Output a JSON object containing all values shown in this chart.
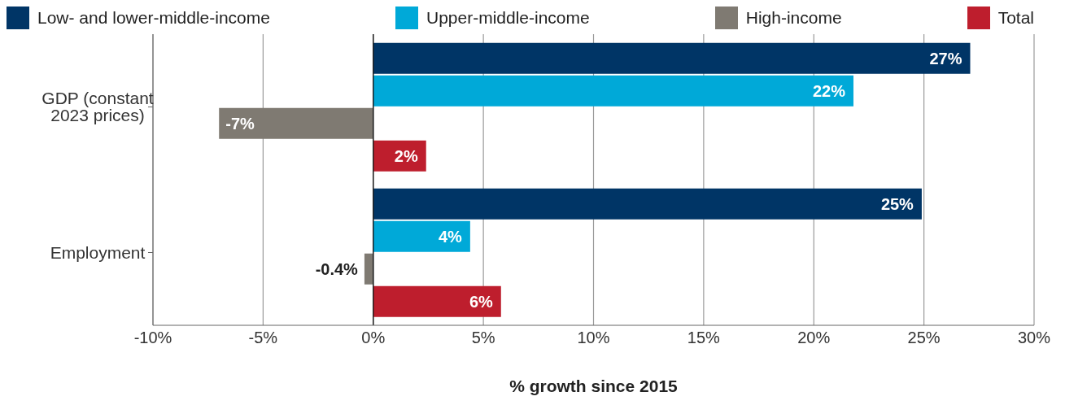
{
  "chart_data": {
    "type": "bar",
    "orientation": "horizontal",
    "xlabel": "% growth since 2015",
    "categories": [
      "GDP (constant 2023 prices)",
      "Employment"
    ],
    "series": [
      {
        "name": "Low- and lower-middle-income",
        "color": "#003566",
        "values": [
          27.1,
          24.9
        ],
        "value_labels": [
          "27%",
          "25%"
        ]
      },
      {
        "name": "Upper-middle-income",
        "color": "#00a9d8",
        "values": [
          21.8,
          4.4
        ],
        "value_labels": [
          "22%",
          "4%"
        ]
      },
      {
        "name": "High-income",
        "color": "#7f7a72",
        "values": [
          -7.0,
          -0.4
        ],
        "value_labels": [
          "-7%",
          "-0.4%"
        ]
      },
      {
        "name": "Total",
        "color": "#be1e2d",
        "values": [
          2.4,
          5.8
        ],
        "value_labels": [
          "2%",
          "6%"
        ]
      }
    ],
    "xlim": [
      -10,
      30
    ],
    "xticks": [
      {
        "value": -10,
        "label": "-10%"
      },
      {
        "value": -5,
        "label": "-5%"
      },
      {
        "value": 0,
        "label": "0%"
      },
      {
        "value": 5,
        "label": "5%"
      },
      {
        "value": 10,
        "label": "10%"
      },
      {
        "value": 15,
        "label": "15%"
      },
      {
        "value": 20,
        "label": "20%"
      },
      {
        "value": 25,
        "label": "25%"
      },
      {
        "value": 30,
        "label": "30%"
      }
    ],
    "grid": "x",
    "legend": "top"
  }
}
